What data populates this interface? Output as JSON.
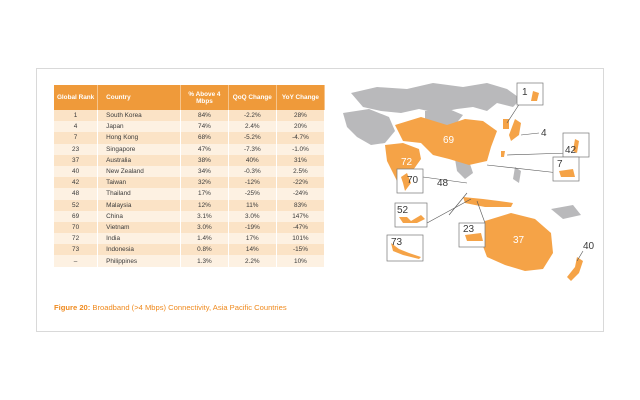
{
  "chart_data": {
    "type": "table",
    "columns": [
      "Global Rank",
      "Country",
      "% Above 4 Mbps",
      "QoQ Change",
      "YoY Change"
    ],
    "rows": [
      {
        "rank": "1",
        "country": "South Korea",
        "pct": "84%",
        "qoq": "-2.2%",
        "yoy": "28%"
      },
      {
        "rank": "4",
        "country": "Japan",
        "pct": "74%",
        "qoq": "2.4%",
        "yoy": "20%"
      },
      {
        "rank": "7",
        "country": "Hong Kong",
        "pct": "68%",
        "qoq": "-5.2%",
        "yoy": "-4.7%"
      },
      {
        "rank": "23",
        "country": "Singapore",
        "pct": "47%",
        "qoq": "-7.3%",
        "yoy": "-1.0%"
      },
      {
        "rank": "37",
        "country": "Australia",
        "pct": "38%",
        "qoq": "40%",
        "yoy": "31%"
      },
      {
        "rank": "40",
        "country": "New Zealand",
        "pct": "34%",
        "qoq": "-0.3%",
        "yoy": "2.5%"
      },
      {
        "rank": "42",
        "country": "Taiwan",
        "pct": "32%",
        "qoq": "-12%",
        "yoy": "-22%"
      },
      {
        "rank": "48",
        "country": "Thailand",
        "pct": "17%",
        "qoq": "-25%",
        "yoy": "-24%"
      },
      {
        "rank": "52",
        "country": "Malaysia",
        "pct": "12%",
        "qoq": "11%",
        "yoy": "83%"
      },
      {
        "rank": "69",
        "country": "China",
        "pct": "3.1%",
        "qoq": "3.0%",
        "yoy": "147%"
      },
      {
        "rank": "70",
        "country": "Vietnam",
        "pct": "3.0%",
        "qoq": "-19%",
        "yoy": "-47%"
      },
      {
        "rank": "72",
        "country": "India",
        "pct": "1.4%",
        "qoq": "17%",
        "yoy": "101%"
      },
      {
        "rank": "73",
        "country": "Indonesia",
        "pct": "0.8%",
        "qoq": "14%",
        "yoy": "-15%"
      },
      {
        "rank": "–",
        "country": "Philippines",
        "pct": "1.3%",
        "qoq": "2.2%",
        "yoy": "10%"
      }
    ],
    "map_labels": [
      "1",
      "4",
      "42",
      "7",
      "69",
      "72",
      "70",
      "48",
      "52",
      "23",
      "73",
      "37",
      "40"
    ]
  },
  "caption": {
    "figure": "Figure 20:",
    "text": " Broadband (>4 Mbps) Connectivity, Asia Pacific Countries"
  },
  "colors": {
    "header": "#ef9a3a",
    "row_dark": "#fbe3c6",
    "row_light": "#fdf1e2",
    "highlight": "#f5a347",
    "land": "#b9b9bb",
    "caption": "#ef8a1e"
  }
}
